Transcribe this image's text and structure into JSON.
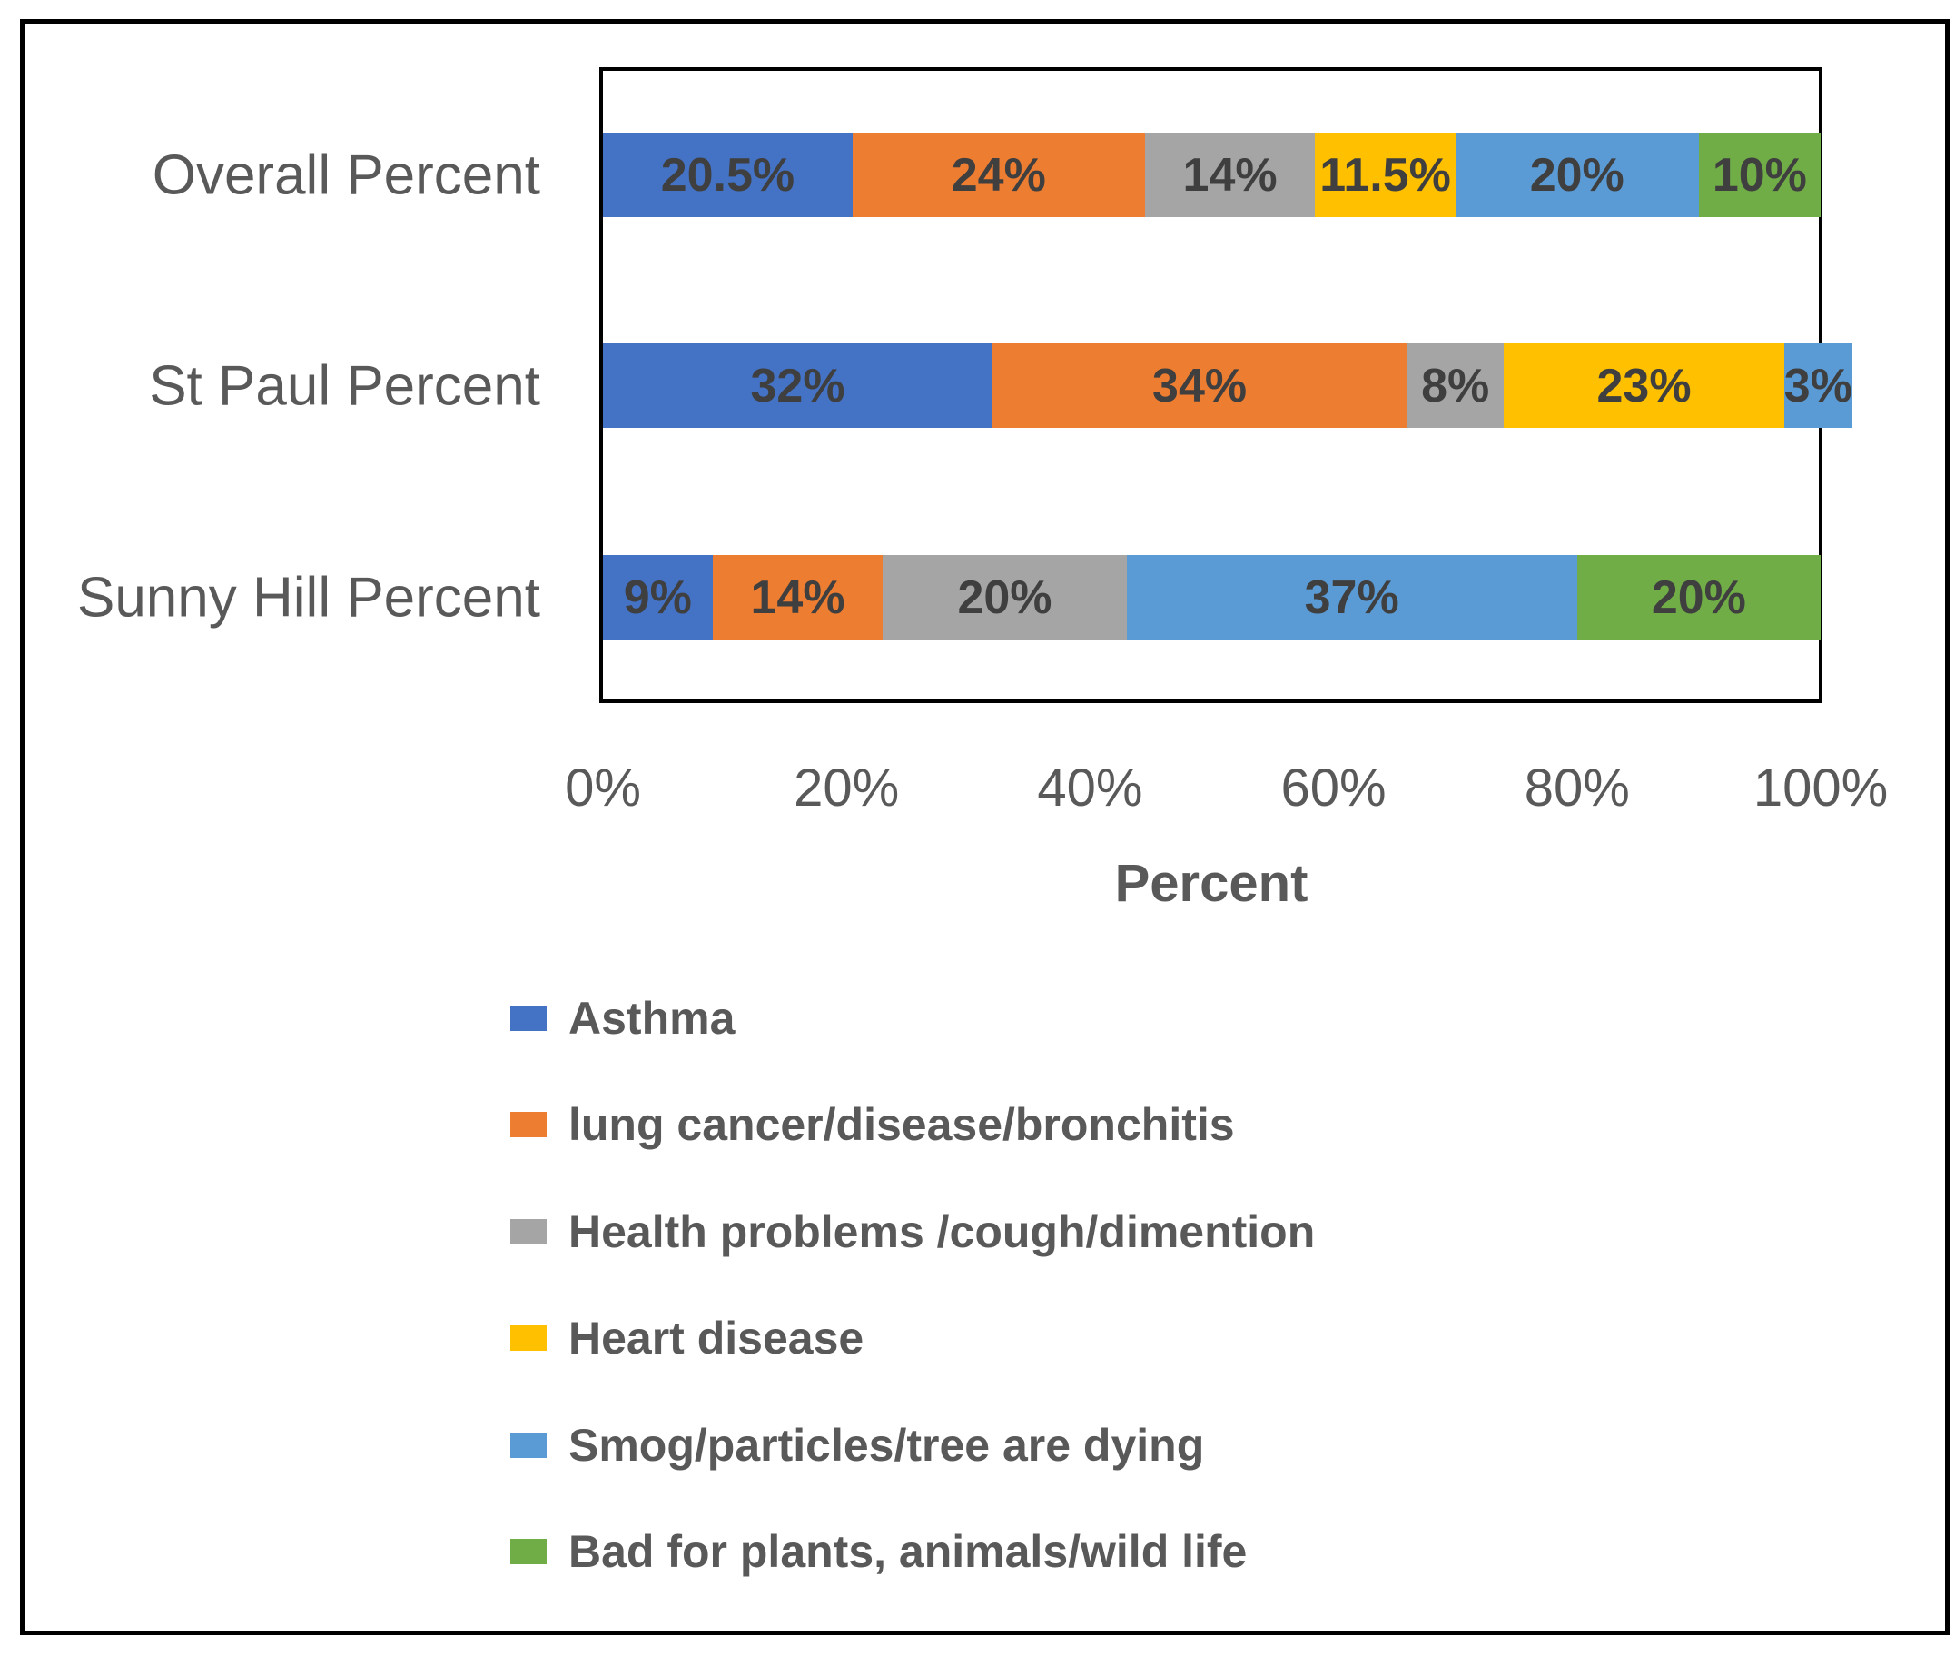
{
  "chart_data": {
    "type": "bar",
    "stacked": true,
    "orientation": "horizontal",
    "categories": [
      "Overall Percent",
      "St Paul Percent",
      "Sunny Hill Percent"
    ],
    "series": [
      {
        "name": "Asthma",
        "color": "#4472C4",
        "values": [
          20.5,
          32,
          9
        ],
        "labels": [
          "20.5%",
          "32%",
          "9%"
        ]
      },
      {
        "name": "lung cancer/disease/bronchitis",
        "color": "#ED7D31",
        "values": [
          24,
          34,
          14
        ],
        "labels": [
          "24%",
          "34%",
          "14%"
        ]
      },
      {
        "name": "Health problems /cough/dimention",
        "color": "#A5A5A5",
        "values": [
          14,
          8,
          20
        ],
        "labels": [
          "14%",
          "8%",
          "20%"
        ]
      },
      {
        "name": "Heart disease",
        "color": "#FFC000",
        "values": [
          11.5,
          23,
          0
        ],
        "labels": [
          "11.5%",
          "23%",
          ""
        ]
      },
      {
        "name": "Smog/particles/tree are dying",
        "color": "#5B9BD5",
        "values": [
          20,
          3,
          37
        ],
        "labels": [
          "20%",
          "3%",
          "37%"
        ]
      },
      {
        "name": "Bad for plants, animals/wild life",
        "color": "#70AD47",
        "values": [
          10,
          0,
          20
        ],
        "labels": [
          "10%",
          "",
          "20%"
        ]
      }
    ],
    "xlabel": "Percent",
    "x_ticks": [
      "0%",
      "20%",
      "40%",
      "60%",
      "80%",
      "100%"
    ],
    "xlim": [
      0,
      100
    ],
    "grid": false,
    "legend_position": "bottom-left",
    "data_label_color": "#3f3f3f",
    "axis_text_color": "#595959"
  }
}
